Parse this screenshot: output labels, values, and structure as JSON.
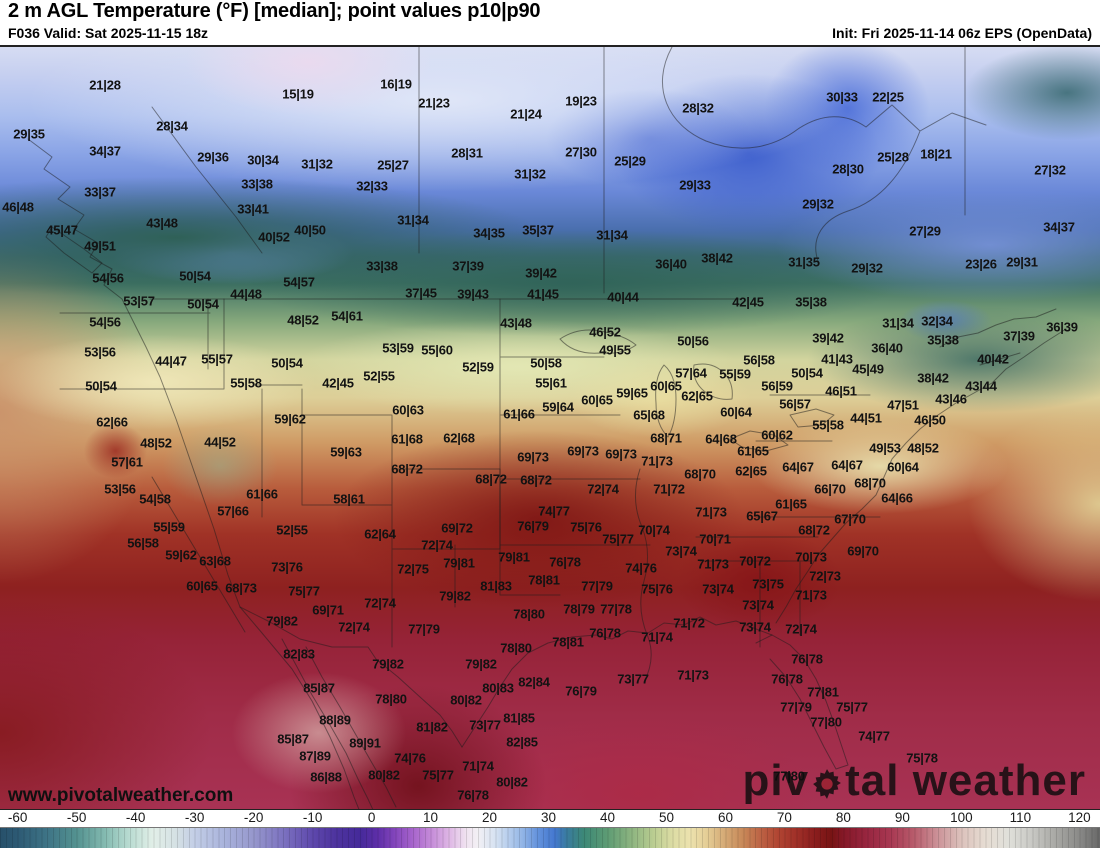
{
  "header": {
    "title": "2 m AGL Temperature (°F) [median]; point values p10|p90",
    "valid": "F036 Valid: Sat 2025-11-15 18z",
    "init": "Init: Fri 2025-11-14 06z EPS (OpenData)"
  },
  "map": {
    "watermark": "www.pivotalweather.com",
    "logo": {
      "pre": "piv",
      "gear_icon": "gear",
      "post": "tal weather"
    },
    "point_values": [
      [
        105,
        83,
        "21|28"
      ],
      [
        298,
        92,
        "15|19"
      ],
      [
        29,
        132,
        "29|35"
      ],
      [
        172,
        124,
        "28|34"
      ],
      [
        105,
        149,
        "34|37"
      ],
      [
        213,
        155,
        "29|36"
      ],
      [
        263,
        158,
        "30|34"
      ],
      [
        317,
        162,
        "31|32"
      ],
      [
        257,
        182,
        "33|38"
      ],
      [
        100,
        190,
        "33|37"
      ],
      [
        18,
        205,
        "46|48"
      ],
      [
        253,
        207,
        "33|41"
      ],
      [
        162,
        221,
        "43|48"
      ],
      [
        62,
        228,
        "45|47"
      ],
      [
        274,
        235,
        "40|52"
      ],
      [
        310,
        228,
        "40|50"
      ],
      [
        100,
        244,
        "49|51"
      ],
      [
        108,
        276,
        "54|56"
      ],
      [
        195,
        274,
        "50|54"
      ],
      [
        299,
        280,
        "54|57"
      ],
      [
        246,
        292,
        "44|48"
      ],
      [
        372,
        184,
        "32|33"
      ],
      [
        396,
        82,
        "16|19"
      ],
      [
        434,
        101,
        "21|23"
      ],
      [
        526,
        112,
        "21|24"
      ],
      [
        581,
        99,
        "19|23"
      ],
      [
        698,
        106,
        "28|32"
      ],
      [
        467,
        151,
        "28|31"
      ],
      [
        581,
        150,
        "27|30"
      ],
      [
        393,
        163,
        "25|27"
      ],
      [
        630,
        159,
        "25|29"
      ],
      [
        530,
        172,
        "31|32"
      ],
      [
        695,
        183,
        "29|33"
      ],
      [
        413,
        218,
        "31|34"
      ],
      [
        489,
        231,
        "34|35"
      ],
      [
        538,
        228,
        "35|37"
      ],
      [
        612,
        233,
        "31|34"
      ],
      [
        671,
        262,
        "36|40"
      ],
      [
        717,
        256,
        "38|42"
      ],
      [
        382,
        264,
        "33|38"
      ],
      [
        468,
        264,
        "37|39"
      ],
      [
        541,
        271,
        "39|42"
      ],
      [
        421,
        291,
        "37|45"
      ],
      [
        473,
        292,
        "39|43"
      ],
      [
        543,
        292,
        "41|45"
      ],
      [
        623,
        295,
        "40|44"
      ],
      [
        842,
        95,
        "30|33"
      ],
      [
        888,
        95,
        "22|25"
      ],
      [
        893,
        155,
        "25|28"
      ],
      [
        936,
        152,
        "18|21"
      ],
      [
        848,
        167,
        "28|30"
      ],
      [
        1050,
        168,
        "27|32"
      ],
      [
        818,
        202,
        "29|32"
      ],
      [
        925,
        229,
        "27|29"
      ],
      [
        1059,
        225,
        "34|37"
      ],
      [
        804,
        260,
        "31|35"
      ],
      [
        867,
        266,
        "29|32"
      ],
      [
        981,
        262,
        "23|26"
      ],
      [
        1022,
        260,
        "29|31"
      ],
      [
        139,
        299,
        "53|57"
      ],
      [
        203,
        302,
        "50|54"
      ],
      [
        303,
        318,
        "48|52"
      ],
      [
        347,
        314,
        "54|61"
      ],
      [
        105,
        320,
        "54|56"
      ],
      [
        100,
        350,
        "53|56"
      ],
      [
        171,
        359,
        "44|47"
      ],
      [
        217,
        357,
        "55|57"
      ],
      [
        287,
        361,
        "50|54"
      ],
      [
        246,
        381,
        "55|58"
      ],
      [
        338,
        381,
        "42|45"
      ],
      [
        101,
        384,
        "50|54"
      ],
      [
        112,
        420,
        "62|66"
      ],
      [
        290,
        417,
        "59|62"
      ],
      [
        156,
        441,
        "48|52"
      ],
      [
        220,
        440,
        "44|52"
      ],
      [
        346,
        450,
        "59|63"
      ],
      [
        127,
        460,
        "57|61"
      ],
      [
        120,
        487,
        "53|56"
      ],
      [
        155,
        497,
        "54|58"
      ],
      [
        262,
        492,
        "61|66"
      ],
      [
        233,
        509,
        "57|66"
      ],
      [
        349,
        497,
        "58|61"
      ],
      [
        169,
        525,
        "55|59"
      ],
      [
        292,
        528,
        "52|55"
      ],
      [
        143,
        541,
        "56|58"
      ],
      [
        516,
        321,
        "43|48"
      ],
      [
        605,
        330,
        "46|52"
      ],
      [
        693,
        339,
        "50|56"
      ],
      [
        615,
        348,
        "49|55"
      ],
      [
        398,
        346,
        "53|59"
      ],
      [
        437,
        348,
        "55|60"
      ],
      [
        478,
        365,
        "52|59"
      ],
      [
        546,
        361,
        "50|58"
      ],
      [
        379,
        374,
        "52|55"
      ],
      [
        551,
        381,
        "55|61"
      ],
      [
        691,
        371,
        "57|64"
      ],
      [
        735,
        372,
        "55|59"
      ],
      [
        666,
        384,
        "60|65"
      ],
      [
        632,
        391,
        "59|65"
      ],
      [
        697,
        394,
        "62|65"
      ],
      [
        408,
        408,
        "60|63"
      ],
      [
        597,
        398,
        "60|65"
      ],
      [
        558,
        405,
        "59|64"
      ],
      [
        519,
        412,
        "61|66"
      ],
      [
        649,
        413,
        "65|68"
      ],
      [
        736,
        410,
        "60|64"
      ],
      [
        407,
        437,
        "61|68"
      ],
      [
        459,
        436,
        "62|68"
      ],
      [
        666,
        436,
        "68|71"
      ],
      [
        721,
        437,
        "64|68"
      ],
      [
        533,
        455,
        "69|73"
      ],
      [
        583,
        449,
        "69|73"
      ],
      [
        621,
        452,
        "69|73"
      ],
      [
        657,
        459,
        "71|73"
      ],
      [
        407,
        467,
        "68|72"
      ],
      [
        700,
        472,
        "68|70"
      ],
      [
        491,
        477,
        "68|72"
      ],
      [
        536,
        478,
        "68|72"
      ],
      [
        603,
        487,
        "72|74"
      ],
      [
        669,
        487,
        "71|72"
      ],
      [
        711,
        510,
        "71|73"
      ],
      [
        554,
        509,
        "74|77"
      ],
      [
        533,
        524,
        "76|79"
      ],
      [
        586,
        525,
        "75|76"
      ],
      [
        457,
        526,
        "69|72"
      ],
      [
        654,
        528,
        "70|74"
      ],
      [
        380,
        532,
        "62|64"
      ],
      [
        618,
        537,
        "75|77"
      ],
      [
        715,
        537,
        "70|71"
      ],
      [
        437,
        543,
        "72|74"
      ],
      [
        748,
        300,
        "42|45"
      ],
      [
        811,
        300,
        "35|38"
      ],
      [
        898,
        321,
        "31|34"
      ],
      [
        937,
        319,
        "32|34"
      ],
      [
        1062,
        325,
        "36|39"
      ],
      [
        828,
        336,
        "39|42"
      ],
      [
        943,
        338,
        "35|38"
      ],
      [
        1019,
        334,
        "37|39"
      ],
      [
        887,
        346,
        "36|40"
      ],
      [
        837,
        357,
        "41|43"
      ],
      [
        993,
        357,
        "40|42"
      ],
      [
        868,
        367,
        "45|49"
      ],
      [
        759,
        358,
        "56|58"
      ],
      [
        807,
        371,
        "50|54"
      ],
      [
        777,
        384,
        "56|59"
      ],
      [
        933,
        376,
        "38|42"
      ],
      [
        981,
        384,
        "43|44"
      ],
      [
        841,
        389,
        "46|51"
      ],
      [
        795,
        402,
        "56|57"
      ],
      [
        951,
        397,
        "43|46"
      ],
      [
        903,
        403,
        "47|51"
      ],
      [
        866,
        416,
        "44|51"
      ],
      [
        930,
        418,
        "46|50"
      ],
      [
        828,
        423,
        "55|58"
      ],
      [
        777,
        433,
        "60|62"
      ],
      [
        753,
        449,
        "61|65"
      ],
      [
        885,
        446,
        "49|53"
      ],
      [
        923,
        446,
        "48|52"
      ],
      [
        751,
        469,
        "62|65"
      ],
      [
        798,
        465,
        "64|67"
      ],
      [
        847,
        463,
        "64|67"
      ],
      [
        903,
        465,
        "60|64"
      ],
      [
        870,
        481,
        "68|70"
      ],
      [
        830,
        487,
        "66|70"
      ],
      [
        897,
        496,
        "64|66"
      ],
      [
        791,
        502,
        "61|65"
      ],
      [
        762,
        514,
        "65|67"
      ],
      [
        850,
        517,
        "67|70"
      ],
      [
        814,
        528,
        "68|72"
      ],
      [
        181,
        553,
        "59|62"
      ],
      [
        215,
        559,
        "63|68"
      ],
      [
        202,
        584,
        "60|65"
      ],
      [
        241,
        586,
        "68|73"
      ],
      [
        287,
        565,
        "73|76"
      ],
      [
        304,
        589,
        "75|77"
      ],
      [
        328,
        608,
        "69|71"
      ],
      [
        282,
        619,
        "79|82"
      ],
      [
        354,
        625,
        "72|74"
      ],
      [
        299,
        652,
        "82|83"
      ],
      [
        319,
        686,
        "85|87"
      ],
      [
        335,
        718,
        "88|89"
      ],
      [
        293,
        737,
        "85|87"
      ],
      [
        365,
        741,
        "89|91"
      ],
      [
        315,
        754,
        "87|89"
      ],
      [
        326,
        775,
        "86|88"
      ],
      [
        459,
        561,
        "79|81"
      ],
      [
        514,
        555,
        "79|81"
      ],
      [
        565,
        560,
        "76|78"
      ],
      [
        413,
        567,
        "72|75"
      ],
      [
        641,
        566,
        "74|76"
      ],
      [
        681,
        549,
        "73|74"
      ],
      [
        713,
        562,
        "71|73"
      ],
      [
        544,
        578,
        "78|81"
      ],
      [
        496,
        584,
        "81|83"
      ],
      [
        597,
        584,
        "77|79"
      ],
      [
        657,
        587,
        "75|76"
      ],
      [
        718,
        587,
        "73|74"
      ],
      [
        455,
        594,
        "79|82"
      ],
      [
        380,
        601,
        "72|74"
      ],
      [
        529,
        612,
        "78|80"
      ],
      [
        579,
        607,
        "78|79"
      ],
      [
        616,
        607,
        "77|78"
      ],
      [
        689,
        621,
        "71|72"
      ],
      [
        424,
        627,
        "77|79"
      ],
      [
        605,
        631,
        "76|78"
      ],
      [
        657,
        635,
        "71|74"
      ],
      [
        568,
        640,
        "78|81"
      ],
      [
        516,
        646,
        "78|80"
      ],
      [
        481,
        662,
        "79|82"
      ],
      [
        388,
        662,
        "79|82"
      ],
      [
        633,
        677,
        "73|77"
      ],
      [
        693,
        673,
        "71|73"
      ],
      [
        534,
        680,
        "82|84"
      ],
      [
        498,
        686,
        "80|83"
      ],
      [
        581,
        689,
        "76|79"
      ],
      [
        391,
        697,
        "78|80"
      ],
      [
        466,
        698,
        "80|82"
      ],
      [
        519,
        716,
        "81|85"
      ],
      [
        432,
        725,
        "81|82"
      ],
      [
        485,
        723,
        "73|77"
      ],
      [
        522,
        740,
        "82|85"
      ],
      [
        410,
        756,
        "74|76"
      ],
      [
        438,
        773,
        "75|77"
      ],
      [
        478,
        764,
        "71|74"
      ],
      [
        512,
        780,
        "80|82"
      ],
      [
        473,
        793,
        "76|78"
      ],
      [
        384,
        773,
        "80|82"
      ],
      [
        755,
        559,
        "70|72"
      ],
      [
        811,
        555,
        "70|73"
      ],
      [
        863,
        549,
        "69|70"
      ],
      [
        768,
        582,
        "73|75"
      ],
      [
        825,
        574,
        "72|73"
      ],
      [
        811,
        593,
        "71|73"
      ],
      [
        758,
        603,
        "73|74"
      ],
      [
        755,
        625,
        "73|74"
      ],
      [
        801,
        627,
        "72|74"
      ],
      [
        807,
        657,
        "76|78"
      ],
      [
        787,
        677,
        "76|78"
      ],
      [
        823,
        690,
        "77|81"
      ],
      [
        796,
        705,
        "77|79"
      ],
      [
        852,
        705,
        "75|77"
      ],
      [
        826,
        720,
        "77|80"
      ],
      [
        874,
        734,
        "74|77"
      ],
      [
        922,
        756,
        "75|78"
      ],
      [
        789,
        774,
        "77|80"
      ]
    ]
  },
  "colorbar": {
    "min": -63,
    "max": 123.5,
    "ticks": [
      -60,
      -50,
      -40,
      -30,
      -20,
      -10,
      0,
      10,
      20,
      30,
      40,
      50,
      60,
      70,
      80,
      90,
      100,
      110,
      120
    ],
    "stops": [
      [
        -63,
        "#27506a"
      ],
      [
        -60,
        "#2d5a74"
      ],
      [
        -55,
        "#3e7486"
      ],
      [
        -50,
        "#549290"
      ],
      [
        -45,
        "#86bcb2"
      ],
      [
        -41,
        "#badcd2"
      ],
      [
        -37,
        "#e2efe8"
      ],
      [
        -33,
        "#d4e0e4"
      ],
      [
        -30,
        "#c3cee6"
      ],
      [
        -25,
        "#a9b3dc"
      ],
      [
        -20,
        "#9697cc"
      ],
      [
        -15,
        "#7c72c0"
      ],
      [
        -10,
        "#5e48ac"
      ],
      [
        -6,
        "#4d339e"
      ],
      [
        -2,
        "#452a9a"
      ],
      [
        1,
        "#5e2ea8"
      ],
      [
        4,
        "#8446bc"
      ],
      [
        7,
        "#a764cc"
      ],
      [
        10,
        "#c48ad8"
      ],
      [
        13,
        "#ddb4e4"
      ],
      [
        16,
        "#f0e2f0"
      ],
      [
        18,
        "#f2f0f4"
      ],
      [
        21,
        "#d6e2f2"
      ],
      [
        25,
        "#9cbce8"
      ],
      [
        28,
        "#6694dc"
      ],
      [
        31,
        "#4478d0"
      ],
      [
        33,
        "#3a7ba0"
      ],
      [
        36,
        "#3c8876"
      ],
      [
        40,
        "#5e9c74"
      ],
      [
        44,
        "#8cb480"
      ],
      [
        48,
        "#bcce92"
      ],
      [
        51,
        "#dcdca4"
      ],
      [
        54,
        "#ece2ae"
      ],
      [
        57,
        "#e4cc94"
      ],
      [
        60,
        "#d4a874"
      ],
      [
        63,
        "#c88858"
      ],
      [
        66,
        "#bc6244"
      ],
      [
        69,
        "#b04432"
      ],
      [
        72,
        "#a03028"
      ],
      [
        75,
        "#8c1e1e"
      ],
      [
        78,
        "#771414"
      ],
      [
        80,
        "#851827"
      ],
      [
        84,
        "#982640"
      ],
      [
        88,
        "#a83852"
      ],
      [
        92,
        "#b85c6c"
      ],
      [
        96,
        "#cc9298"
      ],
      [
        100,
        "#dcc2bc"
      ],
      [
        104,
        "#e6dcd2"
      ],
      [
        108,
        "#e0e0da"
      ],
      [
        112,
        "#c8c8c4"
      ],
      [
        116,
        "#a8a8a4"
      ],
      [
        120,
        "#8a8a88"
      ],
      [
        123.5,
        "#686868"
      ]
    ]
  }
}
